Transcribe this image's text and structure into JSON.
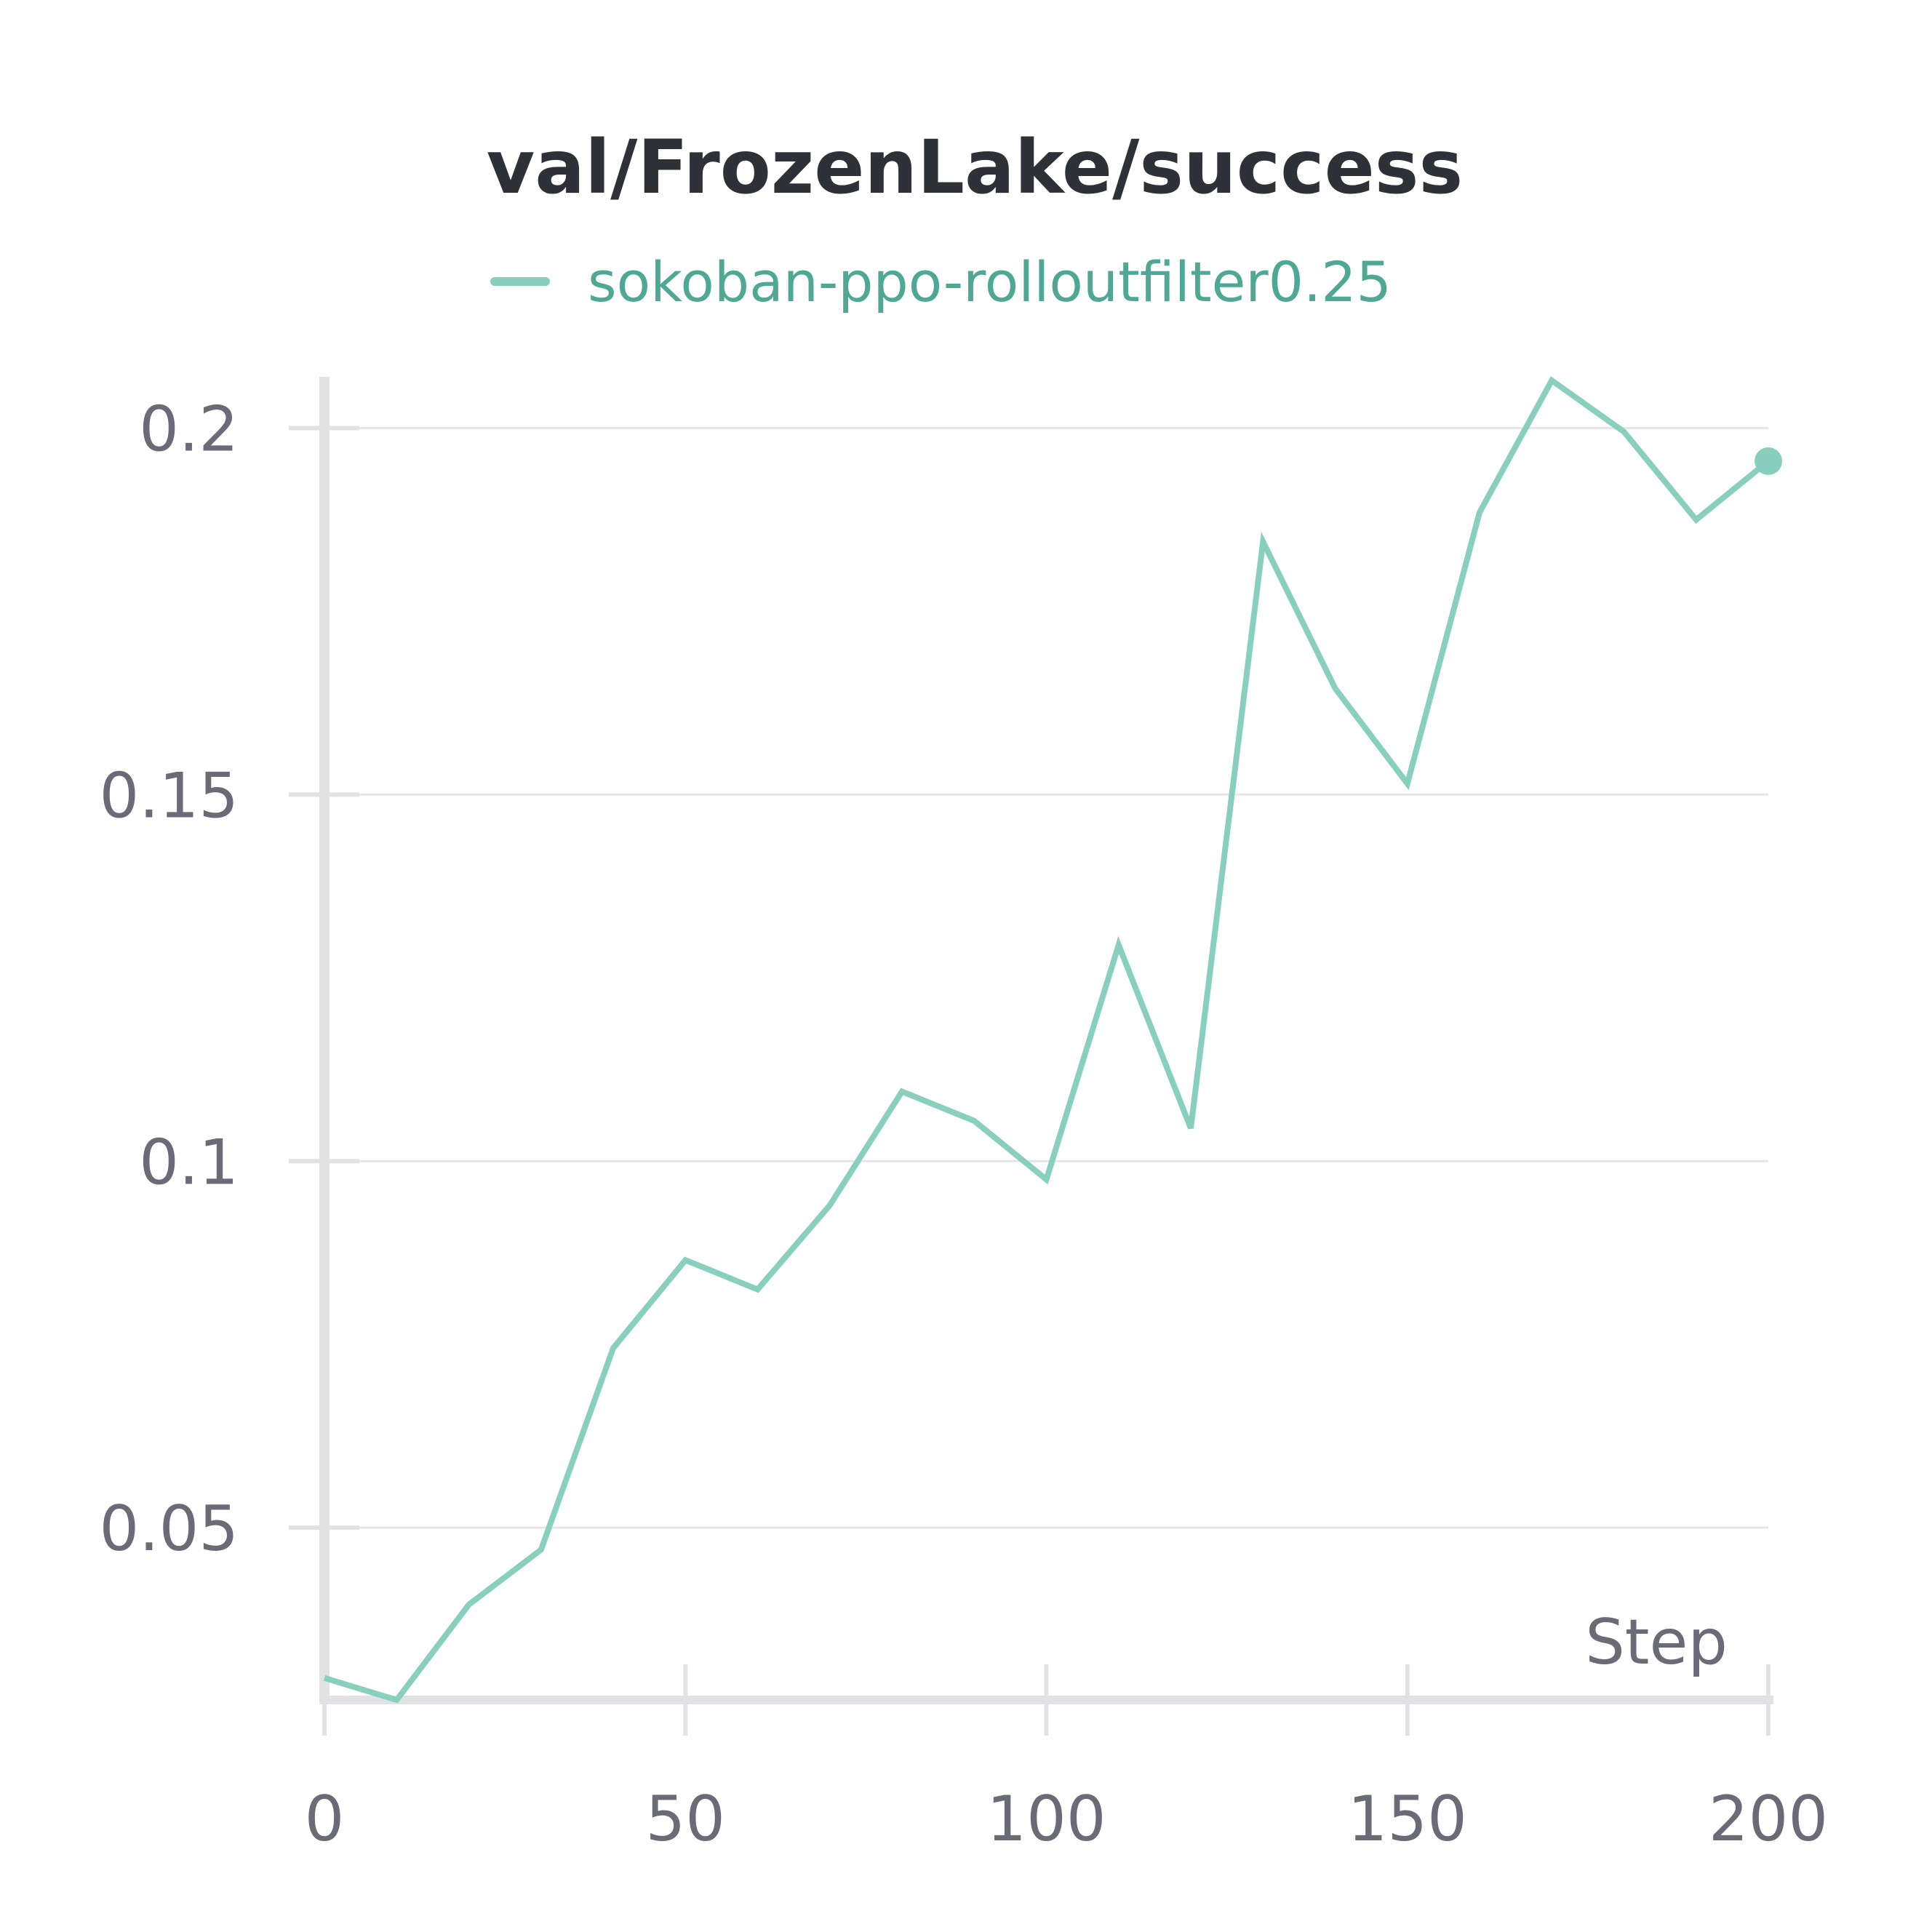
{
  "chart_data": {
    "type": "line",
    "title": "val/FrozenLake/success",
    "xlabel": "Step",
    "ylabel": "",
    "xlim": [
      0,
      200
    ],
    "ylim": [
      0.0265,
      0.207
    ],
    "xticks": [
      0,
      50,
      100,
      150,
      200
    ],
    "xtick_labels": [
      "0",
      "50",
      "100",
      "150",
      "200"
    ],
    "yticks": [
      0.05,
      0.1,
      0.15,
      0.2
    ],
    "ytick_labels": [
      "0.05",
      "0.1",
      "0.15",
      "0.2"
    ],
    "grid": true,
    "legend_position": "top-center",
    "series": [
      {
        "name": "sokoban-ppo-rolloutfilter0.25",
        "color": "#88cfbe",
        "x": [
          0,
          10,
          20,
          30,
          40,
          50,
          60,
          70,
          80,
          90,
          100,
          110,
          120,
          130,
          140,
          150,
          160,
          170,
          180,
          190,
          200
        ],
        "values": [
          0.0295,
          0.0265,
          0.0395,
          0.047,
          0.0745,
          0.0865,
          0.0825,
          0.094,
          0.1095,
          0.1055,
          0.0975,
          0.1295,
          0.1045,
          0.1845,
          0.1645,
          0.1515,
          0.1885,
          0.2065,
          0.1995,
          0.1875,
          0.1955
        ]
      }
    ]
  }
}
